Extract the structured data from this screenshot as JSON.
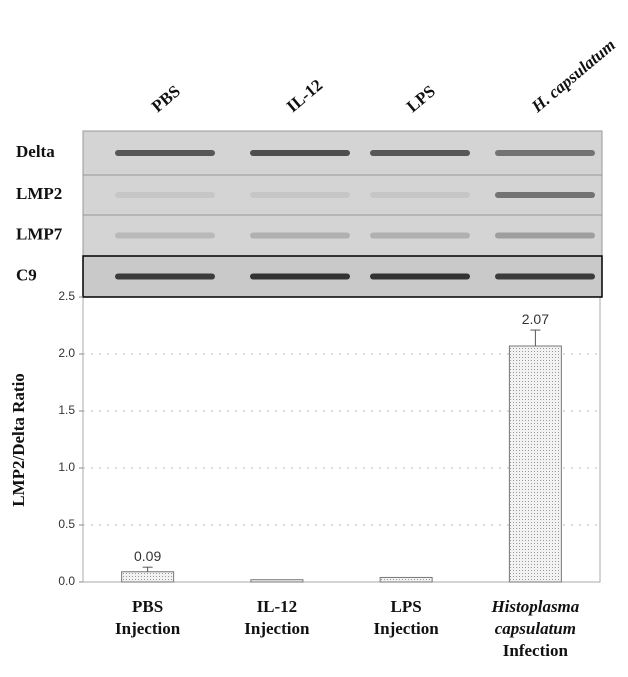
{
  "blot": {
    "lanes": [
      "PBS",
      "IL-12",
      "LPS",
      "H. capsulatum"
    ],
    "rows": [
      "Delta",
      "LMP2",
      "LMP7",
      "C9"
    ]
  },
  "chart_data": {
    "type": "bar",
    "y_label": "LMP2/Delta Ratio",
    "categories": [
      [
        "PBS",
        "Injection"
      ],
      [
        "IL-12",
        "Injection"
      ],
      [
        "LPS",
        "Injection"
      ],
      [
        "Histoplasma",
        "capsulatum",
        "Infection"
      ]
    ],
    "values": [
      0.09,
      0.02,
      0.04,
      2.07
    ],
    "errors": [
      0.04,
      null,
      null,
      0.14
    ],
    "value_labels": [
      "0.09",
      null,
      null,
      "2.07"
    ],
    "color": "#dcdcdc",
    "ylim": [
      0,
      2.5
    ],
    "yticks": [
      {
        "value": 0,
        "label": "0.0"
      },
      {
        "value": 0.5,
        "label": "0.5"
      },
      {
        "value": 1,
        "label": "1.0"
      },
      {
        "value": 1.5,
        "label": "1.5"
      },
      {
        "value": 2,
        "label": "2.0"
      },
      {
        "value": 2.5,
        "label": "2.5"
      }
    ],
    "grid": true
  }
}
